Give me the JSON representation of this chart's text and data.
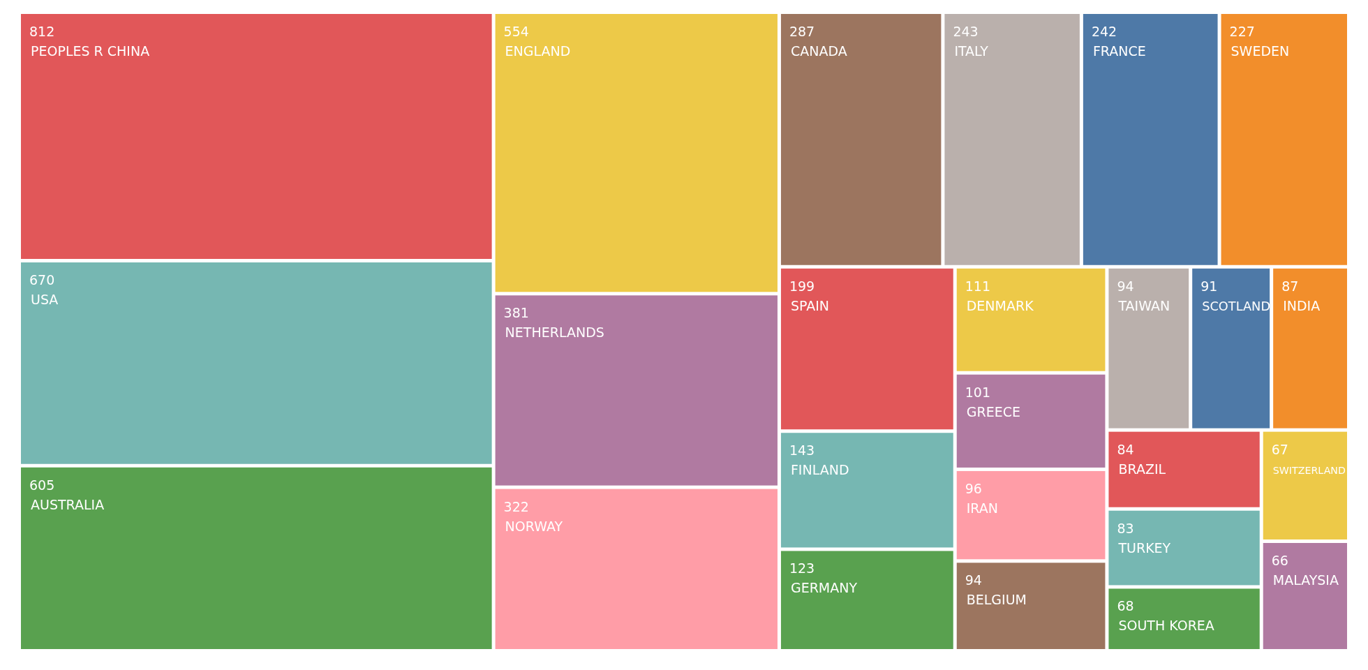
{
  "chart_data": {
    "type": "other",
    "data_labels": true,
    "categories": [
      "PEOPLES R CHINA",
      "USA",
      "AUSTRALIA",
      "ENGLAND",
      "NETHERLANDS",
      "NORWAY",
      "CANADA",
      "ITALY",
      "FRANCE",
      "SWEDEN",
      "SPAIN",
      "FINLAND",
      "GERMANY",
      "DENMARK",
      "GREECE",
      "IRAN",
      "BELGIUM",
      "TAIWAN",
      "SCOTLAND",
      "INDIA",
      "BRAZIL",
      "TURKEY",
      "SOUTH KOREA",
      "SWITZERLAND",
      "MALAYSIA"
    ],
    "values": [
      812,
      670,
      605,
      554,
      381,
      322,
      287,
      243,
      242,
      227,
      199,
      143,
      123,
      111,
      101,
      96,
      94,
      94,
      91,
      87,
      84,
      83,
      68,
      67,
      66
    ],
    "colors": [
      "#e15759",
      "#76b7b2",
      "#59a14f",
      "#edc948",
      "#b07aa1",
      "#ff9da7",
      "#9c755f",
      "#bab0ac",
      "#4e79a7",
      "#f28e2b",
      "#e15759",
      "#76b7b2",
      "#59a14f",
      "#edc948",
      "#b07aa1",
      "#ff9da7",
      "#9c755f",
      "#bab0ac",
      "#4e79a7",
      "#f28e2b",
      "#e15759",
      "#76b7b2",
      "#59a14f",
      "#edc948",
      "#b07aa1"
    ]
  }
}
